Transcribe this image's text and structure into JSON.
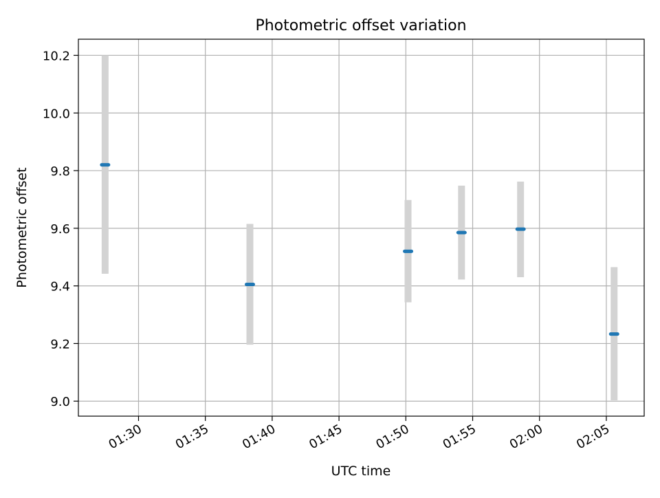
{
  "chart_data": {
    "type": "scatter",
    "title": "Photometric offset variation",
    "xlabel": "UTC time",
    "ylabel": "Photometric offset",
    "x_tick_labels": [
      "01:30",
      "01:35",
      "01:40",
      "01:45",
      "01:50",
      "01:55",
      "02:00",
      "02:05"
    ],
    "y_tick_labels": [
      "9.0",
      "9.2",
      "9.4",
      "9.6",
      "9.8",
      "10.0",
      "10.2"
    ],
    "xlim": [
      "01:25:30",
      "02:07:50"
    ],
    "ylim": [
      8.948,
      10.256
    ],
    "grid": true,
    "series": [
      {
        "x": [
          "01:27:30",
          "01:38:20",
          "01:50:10",
          "01:54:10",
          "01:58:35",
          "02:05:35"
        ],
        "y": [
          9.82,
          9.405,
          9.52,
          9.585,
          9.597,
          9.233
        ],
        "y_low": [
          9.442,
          9.196,
          9.343,
          9.422,
          9.43,
          9.003
        ],
        "y_high": [
          10.2,
          9.615,
          9.698,
          9.748,
          9.762,
          9.465
        ],
        "marker_color": "#1f77b4",
        "errorbar_color": "#d3d3d3"
      }
    ]
  }
}
